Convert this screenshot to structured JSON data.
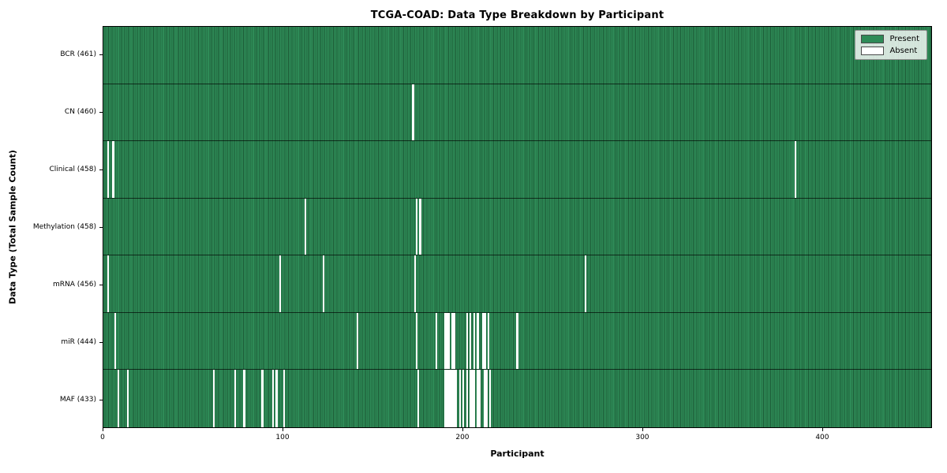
{
  "chart_data": {
    "type": "heatmap",
    "title": "TCGA-COAD: Data Type Breakdown by Participant",
    "xlabel": "Participant",
    "ylabel": "Data Type (Total Sample Count)",
    "x_ticks": [
      0,
      100,
      200,
      300,
      400
    ],
    "x_range": [
      0,
      461
    ],
    "n_participants": 461,
    "grid": false,
    "legend_position": "upper right",
    "legend": [
      {
        "label": "Present",
        "color": "#2E8B57"
      },
      {
        "label": "Absent",
        "color": "#FFFFFF"
      }
    ],
    "colors": {
      "present": "#2E8B57",
      "present_edge": "#1C5A36",
      "absent": "#FFFFFF",
      "plot_border": "#000000",
      "row_divider": "#2A2A2A"
    },
    "rows": [
      {
        "label": "BCR (461)",
        "name": "BCR",
        "total": 461,
        "absent": []
      },
      {
        "label": "CN (460)",
        "name": "CN",
        "total": 460,
        "absent": [
          172
        ]
      },
      {
        "label": "Clinical (458)",
        "name": "Clinical",
        "total": 458,
        "absent": [
          2,
          5,
          385
        ]
      },
      {
        "label": "Methylation (458)",
        "name": "Methylation",
        "total": 458,
        "absent": [
          112,
          174,
          176
        ]
      },
      {
        "label": "mRNA (456)",
        "name": "mRNA",
        "total": 456,
        "absent": [
          2,
          98,
          122,
          173,
          268
        ]
      },
      {
        "label": "miR (444)",
        "name": "miR",
        "total": 444,
        "absent": [
          6,
          141,
          174,
          185,
          190,
          191,
          192,
          194,
          195,
          202,
          204,
          206,
          208,
          211,
          212,
          214,
          230
        ]
      },
      {
        "label": "MAF (433)",
        "name": "MAF",
        "total": 433,
        "absent": [
          8,
          13,
          61,
          73,
          78,
          88,
          94,
          96,
          100,
          175,
          190,
          191,
          192,
          193,
          194,
          195,
          196,
          198,
          200,
          202,
          204,
          205,
          206,
          208,
          209,
          212,
          213,
          215
        ]
      }
    ]
  }
}
